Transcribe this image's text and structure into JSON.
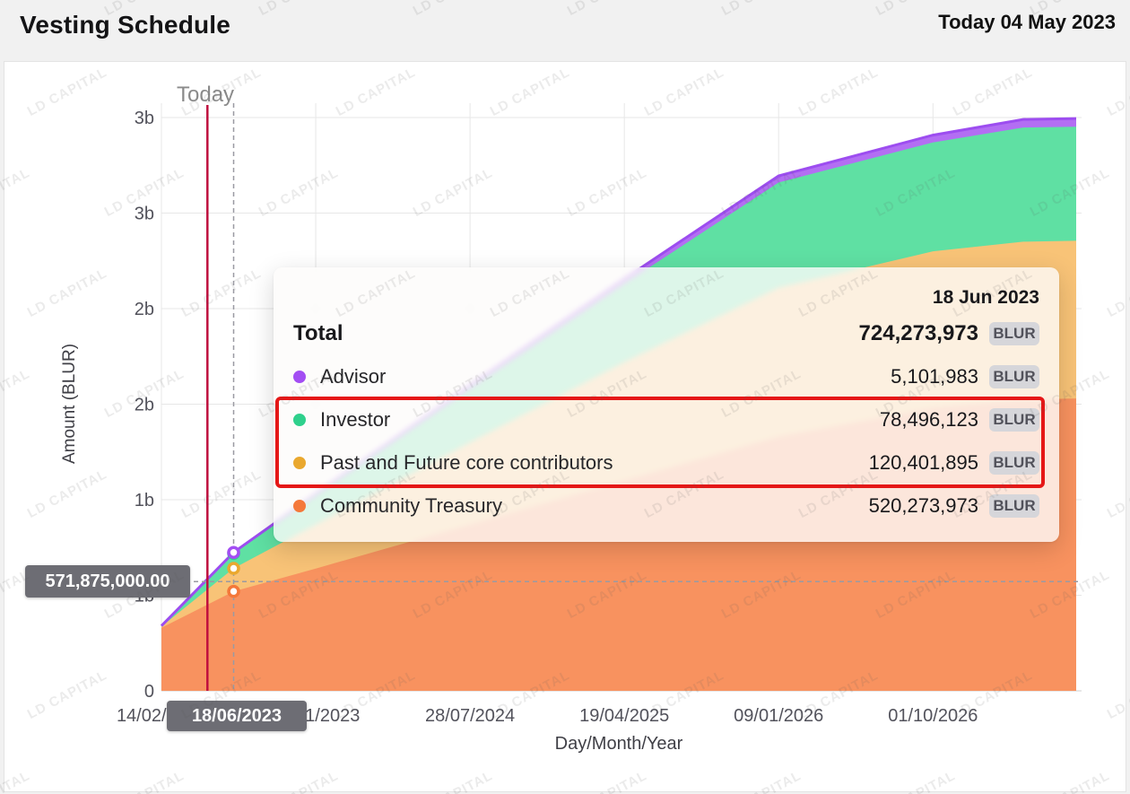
{
  "header": {
    "title": "Vesting Schedule",
    "today_label": "Today 04 May 2023"
  },
  "watermark": {
    "text": "LD CAPITAL"
  },
  "chart_data": {
    "type": "area",
    "stacked": true,
    "title": "Vesting Schedule",
    "xlabel": "Day/Month/Year",
    "ylabel": "Amount (BLUR)",
    "grid": true,
    "units": "millions of BLUR",
    "ylim_millions": [
      0,
      3000
    ],
    "x_domain_days": [
      0,
      1571
    ],
    "x_ticks": {
      "days": [
        0,
        265,
        530,
        795,
        1060,
        1325
      ],
      "labels": [
        "14/02/2023",
        "06/11/2023",
        "28/07/2024",
        "19/04/2025",
        "09/01/2026",
        "01/10/2026"
      ]
    },
    "y_ticks": {
      "values_millions": [
        0,
        500,
        1000,
        1500,
        2000,
        2500,
        3000
      ],
      "labels": [
        "0",
        "1b",
        "1b",
        "2b",
        "2b",
        "3b",
        "3b"
      ]
    },
    "sample_days": [
      0,
      124,
      265,
      530,
      795,
      1060,
      1325,
      1480,
      1571
    ],
    "series": [
      {
        "name": "Community Treasury",
        "color": "#f4783a",
        "fill": "#f8925f",
        "values_millions": [
          330,
          520.274,
          640,
          870,
          1100,
          1330,
          1480,
          1525,
          1530
        ]
      },
      {
        "name": "Past and Future core contributors",
        "color": "#eaa82e",
        "fill": "#f8c377",
        "values_millions": [
          6,
          120.402,
          230,
          430,
          620,
          780,
          820,
          825,
          825
        ]
      },
      {
        "name": "Investor",
        "color": "#2fd08c",
        "fill": "#5fe0a3",
        "values_millions": [
          3,
          78.496,
          150,
          280,
          410,
          550,
          570,
          598,
          597
        ]
      },
      {
        "name": "Advisor",
        "color": "#a34ef3",
        "fill": "#b36ef3",
        "values_millions": [
          1,
          5.102,
          10,
          18,
          26,
          35,
          38,
          42,
          43
        ]
      }
    ],
    "top_line_color": "#9d4df0",
    "today": {
      "label": "Today",
      "day": 79,
      "line_color": "#bf0f3e"
    },
    "crosshair": {
      "day": 124,
      "x_value_label": "18/06/2023",
      "y_value_label": "571,875,000.00"
    }
  },
  "tooltip": {
    "date": "18 Jun 2023",
    "unit": "BLUR",
    "total": {
      "label": "Total",
      "value": "724,273,973"
    },
    "rows": [
      {
        "label": "Advisor",
        "value": "5,101,983",
        "color": "#a34ef3",
        "highlight": false
      },
      {
        "label": "Investor",
        "value": "78,496,123",
        "color": "#2fd08c",
        "highlight": true
      },
      {
        "label": "Past and Future core contributors",
        "value": "120,401,895",
        "color": "#eaa82e",
        "highlight": true
      },
      {
        "label": "Community Treasury",
        "value": "520,273,973",
        "color": "#f4783a",
        "highlight": false
      }
    ],
    "highlight_color": "#e51717"
  }
}
